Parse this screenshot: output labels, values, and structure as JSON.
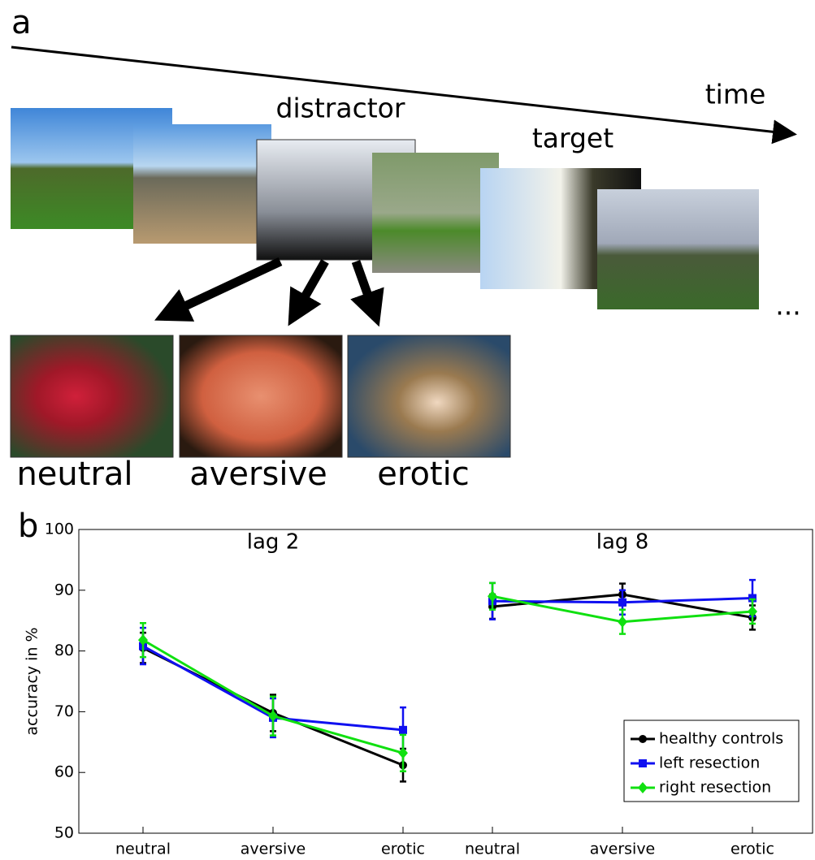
{
  "panel_a": {
    "label": "a",
    "time_label": "time",
    "distractor_label": "distractor",
    "target_label": "target",
    "ellipsis": "...",
    "distractor_types": [
      "neutral",
      "aversive",
      "erotic"
    ]
  },
  "chart_data": {
    "type": "line",
    "panel_label": "b",
    "ylabel": "accuracy in %",
    "groups": [
      {
        "label": "lag 2",
        "indices": [
          0,
          1,
          2
        ]
      },
      {
        "label": "lag 8",
        "indices": [
          3,
          4,
          5
        ]
      }
    ],
    "categories": [
      "neutral",
      "aversive",
      "erotic",
      "neutral",
      "aversive",
      "erotic"
    ],
    "series": [
      {
        "name": "healthy controls",
        "color": "#000000",
        "marker": "circle",
        "values": [
          80.5,
          69.8,
          61.2,
          87.3,
          89.3,
          85.5
        ],
        "errors": [
          2.5,
          3,
          2.7,
          2,
          1.8,
          2
        ]
      },
      {
        "name": "left resection",
        "color": "#1010f0",
        "marker": "square",
        "values": [
          80.8,
          69,
          67,
          88.2,
          88,
          88.7
        ],
        "errors": [
          3,
          3.2,
          3.7,
          3,
          2,
          3
        ]
      },
      {
        "name": "right resection",
        "color": "#10e010",
        "marker": "diamond",
        "values": [
          81.8,
          69.3,
          63.2,
          89,
          84.8,
          86.5
        ],
        "errors": [
          2.8,
          3.2,
          3,
          2.2,
          2,
          2
        ]
      }
    ],
    "ylim": [
      50,
      100
    ],
    "yticks": [
      50,
      60,
      70,
      80,
      90,
      100
    ],
    "legend": "lower right"
  }
}
